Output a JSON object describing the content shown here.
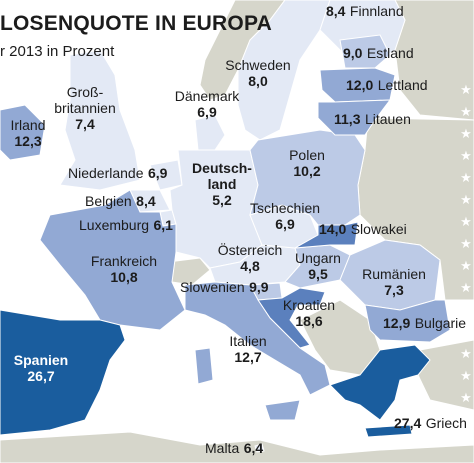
{
  "title": "LOSENQUOTE IN EUROPA",
  "subtitle": "r 2013 in Prozent",
  "colors": {
    "sea": "#ffffff",
    "non_eu_land": "#d6d6cb",
    "level_low": "#e3e9f5",
    "level_mid": "#bccae6",
    "level_upper": "#92a9d4",
    "level_high": "#1a5d9e",
    "border": "#ffffff"
  },
  "countries": [
    {
      "id": "finnland",
      "name": "Finnland",
      "value": "8,4"
    },
    {
      "id": "schweden",
      "name": "Schweden",
      "value": "8,0"
    },
    {
      "id": "estland",
      "name": "Estland",
      "value": "9,0"
    },
    {
      "id": "lettland",
      "name": "Lettland",
      "value": "12,0"
    },
    {
      "id": "litauen",
      "name": "Litauen",
      "value": "11,3"
    },
    {
      "id": "daenemark",
      "name": "Dänemark",
      "value": "6,9"
    },
    {
      "id": "grossbritannien",
      "name_line1": "Groß-",
      "name_line2": "britannien",
      "value": "7,4"
    },
    {
      "id": "irland",
      "name": "Irland",
      "value": "12,3"
    },
    {
      "id": "niederlande",
      "name": "Niederlande",
      "value": "6,9"
    },
    {
      "id": "deutschland",
      "name_line1": "Deutsch-",
      "name_line2": "land",
      "value": "5,2"
    },
    {
      "id": "polen",
      "name": "Polen",
      "value": "10,2"
    },
    {
      "id": "belgien",
      "name": "Belgien",
      "value": "8,4"
    },
    {
      "id": "luxemburg",
      "name": "Luxemburg",
      "value": "6,1"
    },
    {
      "id": "tschechien",
      "name": "Tschechien",
      "value": "6,9"
    },
    {
      "id": "slowakei",
      "name": "Slowakei",
      "value": "14,0"
    },
    {
      "id": "frankreich",
      "name": "Frankreich",
      "value": "10,8"
    },
    {
      "id": "oesterreich",
      "name": "Österreich",
      "value": "4,8"
    },
    {
      "id": "ungarn",
      "name": "Ungarn",
      "value": "9,5"
    },
    {
      "id": "rumaenien",
      "name": "Rumänien",
      "value": "7,3"
    },
    {
      "id": "slowenien",
      "name": "Slowenien",
      "value": "9,9"
    },
    {
      "id": "kroatien",
      "name": "Kroatien",
      "value": "18,6"
    },
    {
      "id": "bulgarien",
      "name": "Bulgarie",
      "value": "12,9"
    },
    {
      "id": "spanien",
      "name": "Spanien",
      "value": "26,7"
    },
    {
      "id": "italien",
      "name": "Italien",
      "value": "12,7"
    },
    {
      "id": "griechenland",
      "name": "Griech",
      "value": "27,4"
    },
    {
      "id": "malta",
      "name": "Malta",
      "value": "6,4"
    }
  ],
  "legend_icons": [
    "star-icon",
    "star-icon",
    "star-icon",
    "star-icon",
    "star-icon",
    "star-icon",
    "star-icon",
    "star-icon",
    "star-icon",
    "star-icon",
    "star-icon",
    "star-icon",
    "star-icon",
    "star-icon",
    "star-icon",
    "star-icon"
  ]
}
